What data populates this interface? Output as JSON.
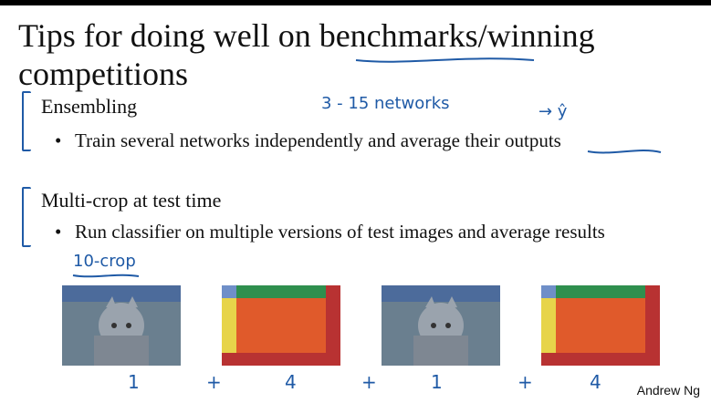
{
  "slide": {
    "title": "Tips for doing well on benchmarks/winning competitions",
    "sections": [
      {
        "heading": "Ensembling",
        "bullet": "Train several networks independently and average their outputs"
      },
      {
        "heading": "Multi-crop at test time",
        "bullet": "Run classifier on multiple versions of test images and average results"
      }
    ],
    "credit": "Andrew Ng"
  },
  "annotations": {
    "networks_note": "3 - 15  networks",
    "yhat_note": "→ ŷ",
    "ten_crop_note": "10-crop",
    "crop_counts": [
      "1",
      "+",
      "4",
      "+",
      "1",
      "+",
      "4"
    ]
  },
  "colors": {
    "ink": "#1f5aa6",
    "orange": "#e05a2b",
    "green": "#2f8f4e",
    "yellow": "#e7d44a",
    "blue": "#6f8fc8",
    "red": "#b83232",
    "gray": "#8a8a8a"
  },
  "icons": [
    "cat-image-icon",
    "crop-layout-icon"
  ]
}
